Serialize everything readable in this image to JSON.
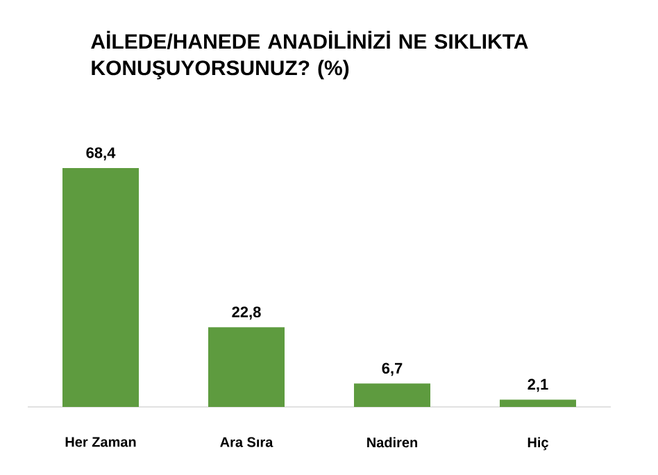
{
  "chart_data": {
    "type": "bar",
    "title": "AİLEDE/HANEDE ANADİLİNİZİ NE SIKLIKTA KONUŞUYORSUNUZ? (%)",
    "categories": [
      "Her Zaman",
      "Ara Sıra",
      "Nadiren",
      "Hiç"
    ],
    "values": [
      68.4,
      22.8,
      6.7,
      2.1
    ],
    "value_labels": [
      "68,4",
      "22,8",
      "6,7",
      "2,1"
    ],
    "color": "#5e9b3f"
  }
}
